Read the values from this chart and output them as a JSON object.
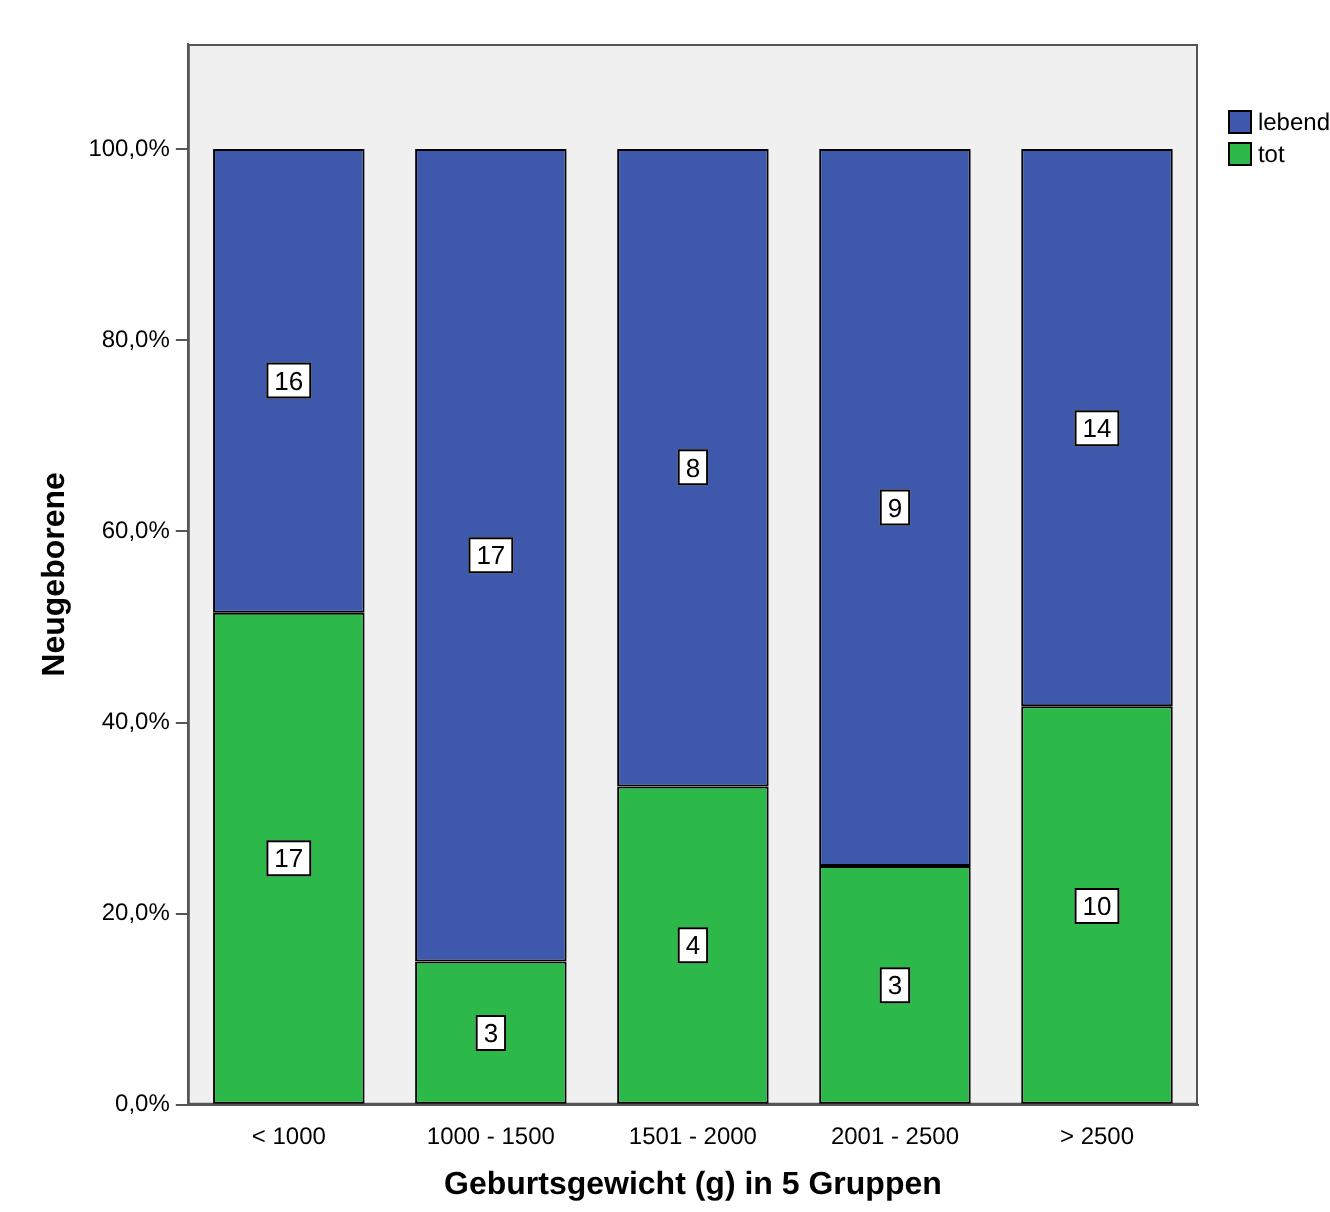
{
  "chart_data": {
    "type": "bar",
    "stacked": true,
    "xlabel": "Geburtsgewicht (g) in 5 Gruppen",
    "ylabel": "Neugeborene",
    "categories": [
      "< 1000",
      "1000 - 1500",
      "1501 - 2000",
      "2001 - 2500",
      "> 2500"
    ],
    "series": [
      {
        "name": "tot",
        "color": "#2db84a",
        "values": [
          51.5,
          15,
          33.3,
          25,
          41.7
        ]
      },
      {
        "name": "lebend",
        "color": "#3e58ac",
        "values": [
          48.5,
          85,
          66.7,
          75,
          58.3
        ]
      }
    ],
    "annotations": [
      {
        "text": "17",
        "x": "< 1000",
        "y": 25.8
      },
      {
        "text": "3",
        "x": "1000 - 1500",
        "y": 7.5
      },
      {
        "text": "4",
        "x": "1501 - 2000",
        "y": 16.7
      },
      {
        "text": "3",
        "x": "2001 - 2500",
        "y": 12.5
      },
      {
        "text": "10",
        "x": "> 2500",
        "y": 20.8
      },
      {
        "text": "16",
        "x": "< 1000",
        "y": 75.8
      },
      {
        "text": "17",
        "x": "1000 - 1500",
        "y": 57.5
      },
      {
        "text": "8",
        "x": "1501 - 2000",
        "y": 66.7
      },
      {
        "text": "9",
        "x": "2001 - 2500",
        "y": 62.5
      },
      {
        "text": "14",
        "x": "> 2500",
        "y": 70.8
      }
    ],
    "ylim": [
      0,
      111
    ],
    "yticks": [
      {
        "value": 0,
        "label": "0,0%"
      },
      {
        "value": 20,
        "label": "20,0%"
      },
      {
        "value": 40,
        "label": "40,0%"
      },
      {
        "value": 60,
        "label": "60,0%"
      },
      {
        "value": 80,
        "label": "80,0%"
      },
      {
        "value": 100,
        "label": "100,0%"
      }
    ],
    "grid": false,
    "legend": "top right"
  }
}
